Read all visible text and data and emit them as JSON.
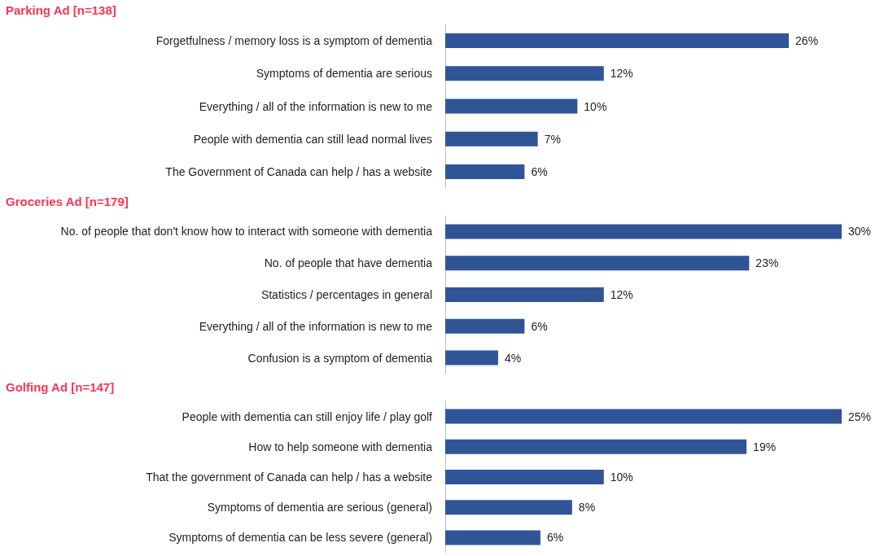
{
  "chart_data": [
    {
      "type": "bar",
      "orientation": "horizontal",
      "title": "Parking Ad [n=138]",
      "categories": [
        "Forgetfulness / memory loss is a symptom of dementia",
        "Symptoms of dementia are serious",
        "Everything / all of the information is new to me",
        "People with dementia can still lead normal lives",
        "The Government of Canada can help / has a website"
      ],
      "values": [
        26,
        12,
        10,
        7,
        6
      ],
      "color": "#2f5597",
      "data_labels": true,
      "value_labels": [
        "26%",
        "12%",
        "10%",
        "7%",
        "6%"
      ]
    },
    {
      "type": "bar",
      "orientation": "horizontal",
      "title": "Groceries Ad [n=179]",
      "categories": [
        "No. of people that don't know how to interact with someone with dementia",
        "No. of people that have dementia",
        "Statistics / percentages in general",
        "Everything / all of the information is new to me",
        "Confusion is a symptom of dementia"
      ],
      "values": [
        30,
        23,
        12,
        6,
        4
      ],
      "color": "#2f5597",
      "data_labels": true,
      "value_labels": [
        "30%",
        "23%",
        "12%",
        "6%",
        "4%"
      ]
    },
    {
      "type": "bar",
      "orientation": "horizontal",
      "title": "Golfing Ad [n=147]",
      "categories": [
        "People with dementia can still enjoy life / play golf",
        "How to help someone with dementia",
        "That the government of Canada can help / has a website",
        "Symptoms of dementia are serious (general)",
        "Symptoms of dementia can be less severe (general)"
      ],
      "values": [
        25,
        19,
        10,
        8,
        6
      ],
      "color": "#2f5597",
      "data_labels": true,
      "value_labels": [
        "25%",
        "19%",
        "10%",
        "8%",
        "6%"
      ]
    }
  ]
}
